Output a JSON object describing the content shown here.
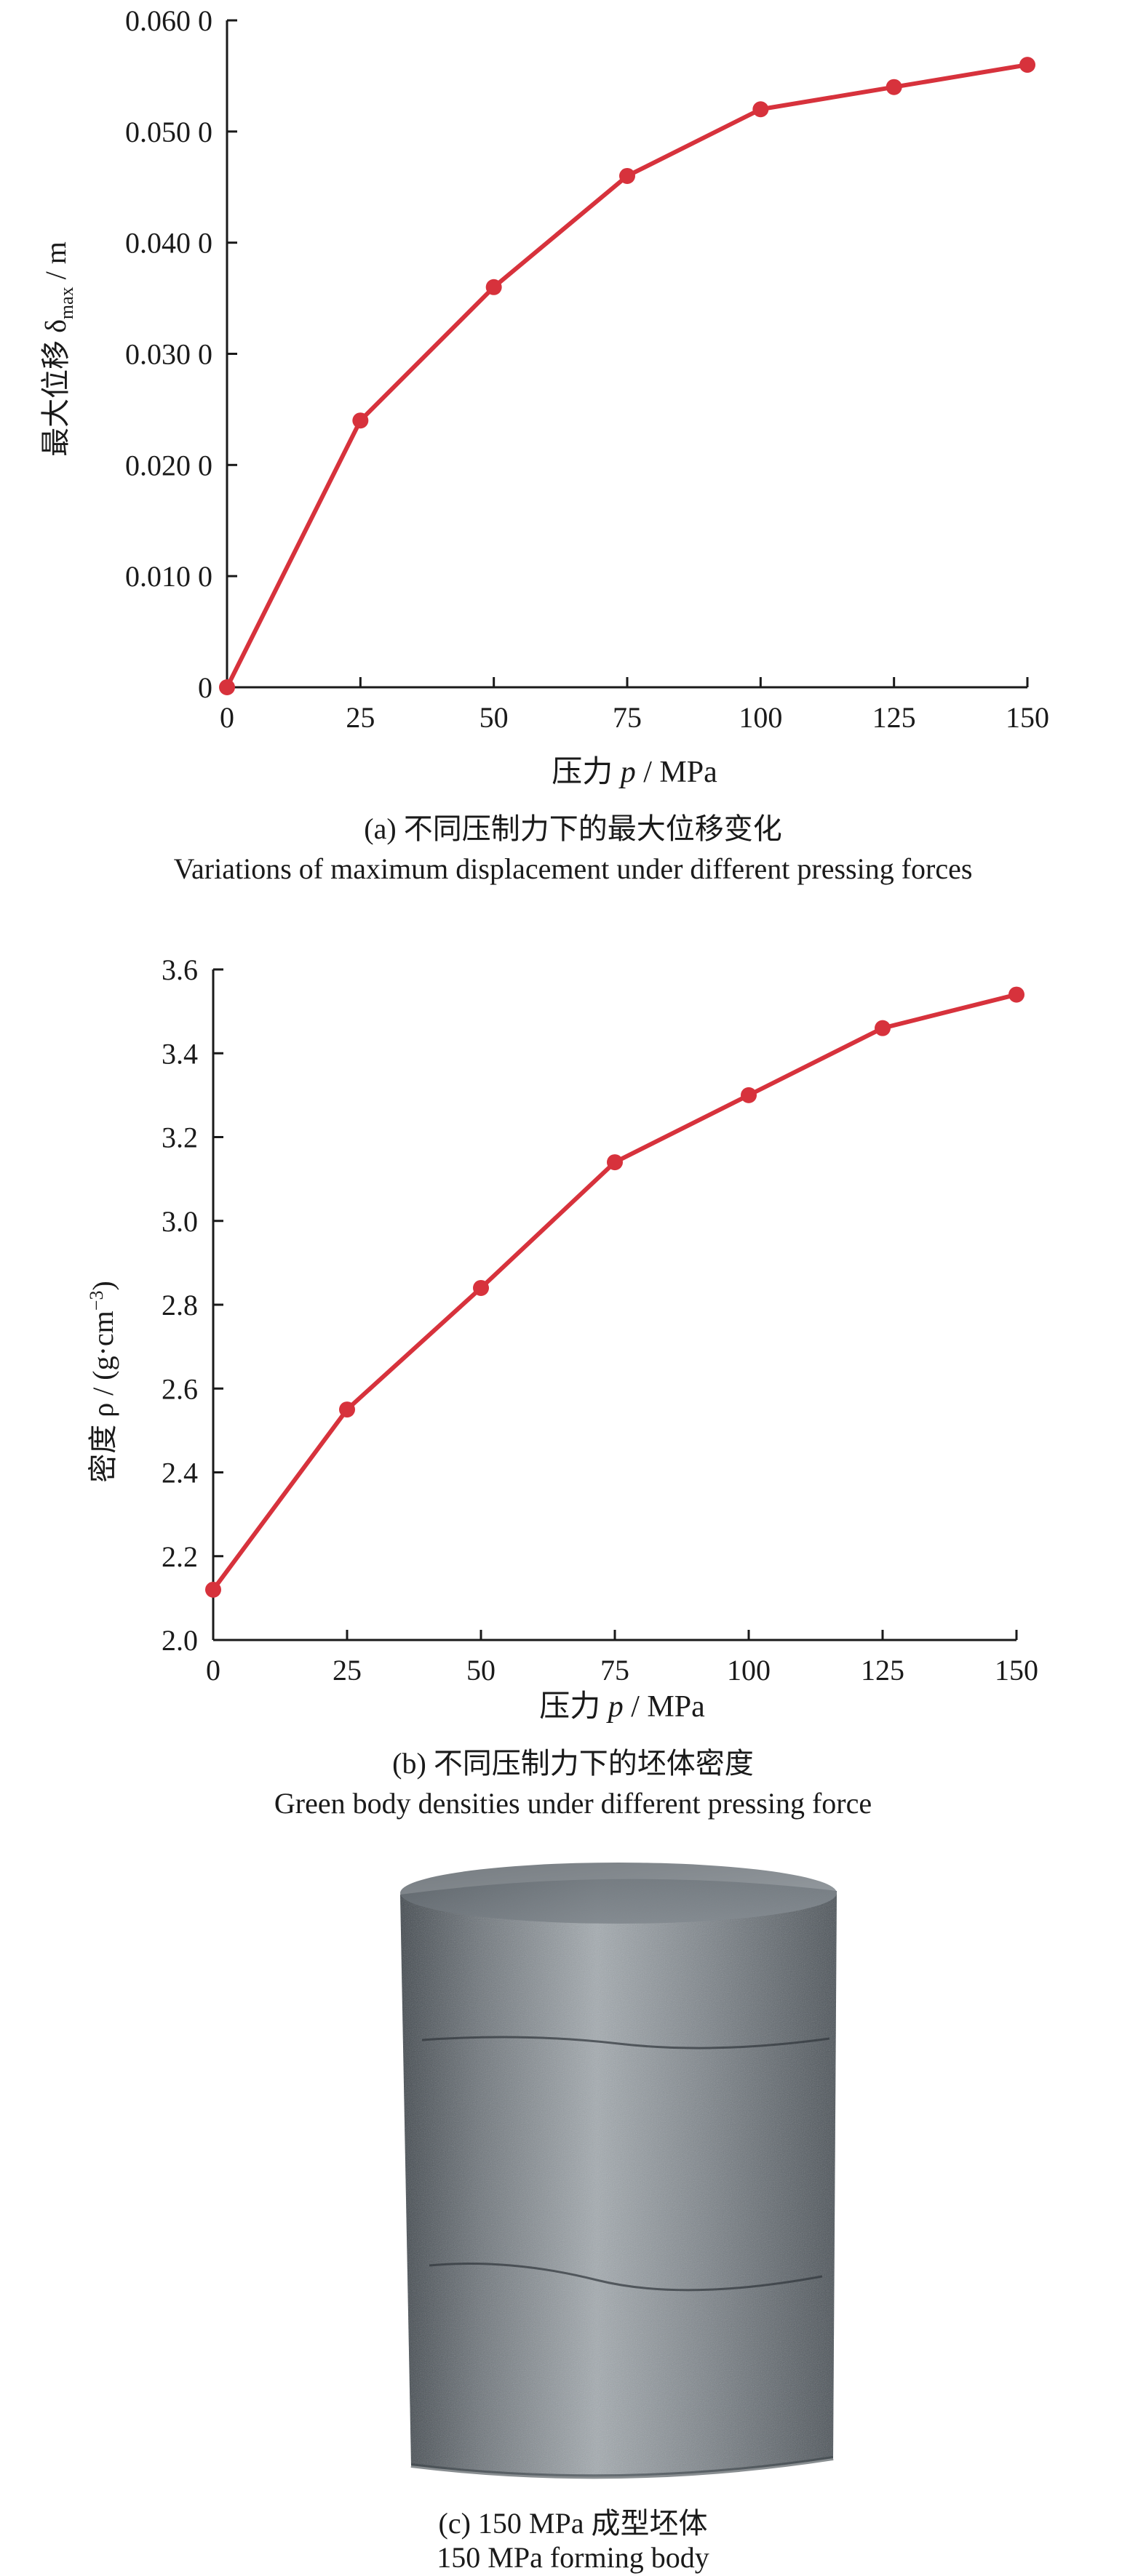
{
  "chart_data": [
    {
      "id": "a",
      "type": "line",
      "ylabel_main": "最大位移 δ",
      "ylabel_sub": "max",
      "ylabel_unit": " / m",
      "xlabel_main": "压力 ",
      "xlabel_var": "p",
      "xlabel_unit": " / MPa",
      "xticks": [
        0,
        25,
        50,
        75,
        100,
        125,
        150
      ],
      "xtick_labels": [
        "0",
        "25",
        "50",
        "75",
        "100",
        "125",
        "150"
      ],
      "yticks": [
        0,
        0.01,
        0.02,
        0.03,
        0.04,
        0.05,
        0.06
      ],
      "ytick_labels": [
        "0",
        "0.010 0",
        "0.020 0",
        "0.030 0",
        "0.040 0",
        "0.050 0",
        "0.060 0"
      ],
      "xlim": [
        0,
        150
      ],
      "ylim": [
        0,
        0.06
      ],
      "grid": false,
      "series": [
        {
          "color": "#d7323c",
          "points": [
            [
              0,
              0.0
            ],
            [
              25,
              0.024
            ],
            [
              50,
              0.036
            ],
            [
              75,
              0.046
            ],
            [
              100,
              0.052
            ],
            [
              125,
              0.054
            ],
            [
              150,
              0.056
            ]
          ]
        }
      ]
    },
    {
      "id": "b",
      "type": "line",
      "ylabel_main": "密度 ρ / (g·cm",
      "ylabel_sup": "−3",
      "ylabel_unit": ")",
      "xlabel_main": "压力 ",
      "xlabel_var": "p",
      "xlabel_unit": " / MPa",
      "xticks": [
        0,
        25,
        50,
        75,
        100,
        125,
        150
      ],
      "xtick_labels": [
        "0",
        "25",
        "50",
        "75",
        "100",
        "125",
        "150"
      ],
      "yticks": [
        2.0,
        2.2,
        2.4,
        2.6,
        2.8,
        3.0,
        3.2,
        3.4,
        3.6
      ],
      "ytick_labels": [
        "2.0",
        "2.2",
        "2.4",
        "2.6",
        "2.8",
        "3.0",
        "3.2",
        "3.4",
        "3.6"
      ],
      "xlim": [
        0,
        150
      ],
      "ylim": [
        2.0,
        3.6
      ],
      "grid": false,
      "series": [
        {
          "color": "#d7323c",
          "points": [
            [
              0,
              2.12
            ],
            [
              25,
              2.55
            ],
            [
              50,
              2.84
            ],
            [
              75,
              3.14
            ],
            [
              100,
              3.3
            ],
            [
              125,
              3.46
            ],
            [
              150,
              3.54
            ]
          ]
        }
      ]
    }
  ],
  "captions": {
    "a_cn": "(a) 不同压制力下的最大位移变化",
    "a_en": "Variations of maximum displacement under different pressing forces",
    "b_cn": "(b) 不同压制力下的坯体密度",
    "b_en": "Green body densities under different pressing force",
    "c_cn": "(c) 150 MPa 成型坯体",
    "c_en": "150 MPa forming body"
  },
  "photo": {
    "subject": "cylindrical-green-body",
    "colors": [
      "#6e757b",
      "#9aa1a7",
      "#4f565c"
    ]
  }
}
